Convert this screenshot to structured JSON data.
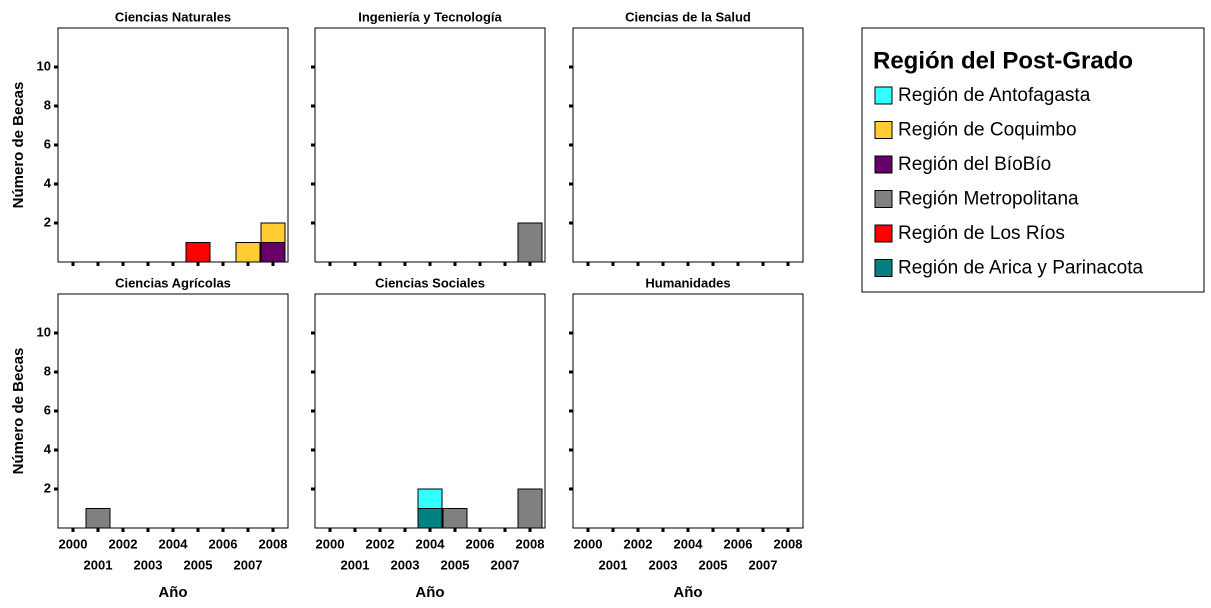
{
  "legend": {
    "title": "Región del Post-Grado",
    "series": [
      {
        "name": "Región de Antofagasta",
        "color": "#33ffff"
      },
      {
        "name": "Región de Coquimbo",
        "color": "#ffcc33"
      },
      {
        "name": "Región del BíoBío",
        "color": "#660066"
      },
      {
        "name": "Región Metropolitana",
        "color": "#808080"
      },
      {
        "name": "Región de Los Ríos",
        "color": "#ff0000"
      },
      {
        "name": "Región de Arica y Parinacota",
        "color": "#008080"
      }
    ]
  },
  "chart_data": [
    {
      "type": "bar",
      "title": "Ciencias Naturales",
      "y_label": "Número de Becas",
      "x": [
        2000,
        2001,
        2002,
        2003,
        2004,
        2005,
        2006,
        2007,
        2008
      ],
      "series": [
        {
          "values": [
            0,
            0,
            0,
            0,
            0,
            0,
            0,
            0,
            0
          ]
        },
        {
          "values": [
            0,
            0,
            0,
            0,
            0,
            0,
            0,
            1,
            1
          ]
        },
        {
          "values": [
            0,
            0,
            0,
            0,
            0,
            0,
            0,
            0,
            1
          ]
        },
        {
          "values": [
            0,
            0,
            0,
            0,
            0,
            0,
            0,
            0,
            0
          ]
        },
        {
          "values": [
            0,
            0,
            0,
            0,
            0,
            1,
            0,
            0,
            0
          ]
        },
        {
          "values": [
            0,
            0,
            0,
            0,
            0,
            0,
            0,
            0,
            0
          ]
        }
      ],
      "xlim": [
        1999.4,
        2008.6
      ],
      "xticks": [
        2000,
        2001,
        2002,
        2003,
        2004,
        2005,
        2006,
        2007,
        2008
      ],
      "ylim": [
        0,
        12
      ],
      "yticks": [
        2,
        4,
        6,
        8,
        10
      ]
    },
    {
      "type": "bar",
      "title": "Ingeniería y Tecnología",
      "x": [
        2000,
        2001,
        2002,
        2003,
        2004,
        2005,
        2006,
        2007,
        2008
      ],
      "series": [
        {
          "values": [
            0,
            0,
            0,
            0,
            0,
            0,
            0,
            0,
            0
          ]
        },
        {
          "values": [
            0,
            0,
            0,
            0,
            0,
            0,
            0,
            0,
            0
          ]
        },
        {
          "values": [
            0,
            0,
            0,
            0,
            0,
            0,
            0,
            0,
            0
          ]
        },
        {
          "values": [
            0,
            0,
            0,
            0,
            0,
            0,
            0,
            0,
            2
          ]
        },
        {
          "values": [
            0,
            0,
            0,
            0,
            0,
            0,
            0,
            0,
            0
          ]
        },
        {
          "values": [
            0,
            0,
            0,
            0,
            0,
            0,
            0,
            0,
            0
          ]
        }
      ],
      "xlim": [
        1999.4,
        2008.6
      ],
      "xticks": [
        2000,
        2001,
        2002,
        2003,
        2004,
        2005,
        2006,
        2007,
        2008
      ],
      "ylim": [
        0,
        12
      ],
      "yticks": [
        2,
        4,
        6,
        8,
        10
      ]
    },
    {
      "type": "bar",
      "title": "Ciencias de la Salud",
      "x": [
        2000,
        2001,
        2002,
        2003,
        2004,
        2005,
        2006,
        2007,
        2008
      ],
      "series": [
        {
          "values": [
            0,
            0,
            0,
            0,
            0,
            0,
            0,
            0,
            0
          ]
        },
        {
          "values": [
            0,
            0,
            0,
            0,
            0,
            0,
            0,
            0,
            0
          ]
        },
        {
          "values": [
            0,
            0,
            0,
            0,
            0,
            0,
            0,
            0,
            0
          ]
        },
        {
          "values": [
            0,
            0,
            0,
            0,
            0,
            0,
            0,
            0,
            0
          ]
        },
        {
          "values": [
            0,
            0,
            0,
            0,
            0,
            0,
            0,
            0,
            0
          ]
        },
        {
          "values": [
            0,
            0,
            0,
            0,
            0,
            0,
            0,
            0,
            0
          ]
        }
      ],
      "xlim": [
        1999.4,
        2008.6
      ],
      "xticks": [
        2000,
        2001,
        2002,
        2003,
        2004,
        2005,
        2006,
        2007,
        2008
      ],
      "ylim": [
        0,
        12
      ],
      "yticks": [
        2,
        4,
        6,
        8,
        10
      ]
    },
    {
      "type": "bar",
      "title": "Ciencias Agrícolas",
      "y_label": "Número de Becas",
      "x_label": "Año",
      "x": [
        2000,
        2001,
        2002,
        2003,
        2004,
        2005,
        2006,
        2007,
        2008
      ],
      "series": [
        {
          "values": [
            0,
            0,
            0,
            0,
            0,
            0,
            0,
            0,
            0
          ]
        },
        {
          "values": [
            0,
            0,
            0,
            0,
            0,
            0,
            0,
            0,
            0
          ]
        },
        {
          "values": [
            0,
            0,
            0,
            0,
            0,
            0,
            0,
            0,
            0
          ]
        },
        {
          "values": [
            0,
            1,
            0,
            0,
            0,
            0,
            0,
            0,
            0
          ]
        },
        {
          "values": [
            0,
            0,
            0,
            0,
            0,
            0,
            0,
            0,
            0
          ]
        },
        {
          "values": [
            0,
            0,
            0,
            0,
            0,
            0,
            0,
            0,
            0
          ]
        }
      ],
      "xlim": [
        1999.4,
        2008.6
      ],
      "xticks": [
        2000,
        2001,
        2002,
        2003,
        2004,
        2005,
        2006,
        2007,
        2008
      ],
      "ylim": [
        0,
        12
      ],
      "yticks": [
        2,
        4,
        6,
        8,
        10
      ]
    },
    {
      "type": "bar",
      "title": "Ciencias Sociales",
      "x_label": "Año",
      "x": [
        2000,
        2001,
        2002,
        2003,
        2004,
        2005,
        2006,
        2007,
        2008
      ],
      "series": [
        {
          "values": [
            0,
            0,
            0,
            0,
            1,
            0,
            0,
            0,
            0
          ]
        },
        {
          "values": [
            0,
            0,
            0,
            0,
            0,
            0,
            0,
            0,
            0
          ]
        },
        {
          "values": [
            0,
            0,
            0,
            0,
            0,
            0,
            0,
            0,
            0
          ]
        },
        {
          "values": [
            0,
            0,
            0,
            0,
            0,
            1,
            0,
            0,
            2
          ]
        },
        {
          "values": [
            0,
            0,
            0,
            0,
            0,
            0,
            0,
            0,
            0
          ]
        },
        {
          "values": [
            0,
            0,
            0,
            0,
            1,
            0,
            0,
            0,
            0
          ]
        }
      ],
      "xlim": [
        1999.4,
        2008.6
      ],
      "xticks": [
        2000,
        2001,
        2002,
        2003,
        2004,
        2005,
        2006,
        2007,
        2008
      ],
      "ylim": [
        0,
        12
      ],
      "yticks": [
        2,
        4,
        6,
        8,
        10
      ]
    },
    {
      "type": "bar",
      "title": "Humanidades",
      "x_label": "Año",
      "x": [
        2000,
        2001,
        2002,
        2003,
        2004,
        2005,
        2006,
        2007,
        2008
      ],
      "series": [
        {
          "values": [
            0,
            0,
            0,
            0,
            0,
            0,
            0,
            0,
            0
          ]
        },
        {
          "values": [
            0,
            0,
            0,
            0,
            0,
            0,
            0,
            0,
            0
          ]
        },
        {
          "values": [
            0,
            0,
            0,
            0,
            0,
            0,
            0,
            0,
            0
          ]
        },
        {
          "values": [
            0,
            0,
            0,
            0,
            0,
            0,
            0,
            0,
            0
          ]
        },
        {
          "values": [
            0,
            0,
            0,
            0,
            0,
            0,
            0,
            0,
            0
          ]
        },
        {
          "values": [
            0,
            0,
            0,
            0,
            0,
            0,
            0,
            0,
            0
          ]
        }
      ],
      "xlim": [
        1999.4,
        2008.6
      ],
      "xticks": [
        2000,
        2001,
        2002,
        2003,
        2004,
        2005,
        2006,
        2007,
        2008
      ],
      "ylim": [
        0,
        12
      ],
      "yticks": [
        2,
        4,
        6,
        8,
        10
      ]
    }
  ]
}
